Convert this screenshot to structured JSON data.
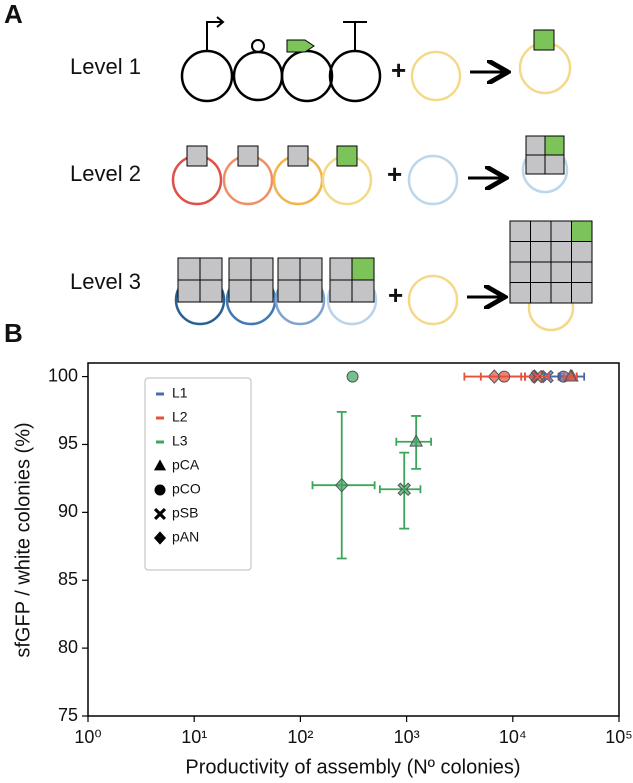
{
  "figure": {
    "panel_a_label": "A",
    "panel_b_label": "B"
  },
  "diagram": {
    "levels": [
      "Level 1",
      "Level 2",
      "Level 3"
    ],
    "plus": "+"
  },
  "chart_data": {
    "type": "scatter",
    "xlabel": "Productivity of assembly (Nº colonies)",
    "ylabel": "sfGFP / white colonies (%)",
    "xscale": "log",
    "xlim": [
      1,
      100000
    ],
    "xticks": [
      {
        "value": 1,
        "label": "10⁰"
      },
      {
        "value": 10,
        "label": "10¹"
      },
      {
        "value": 100,
        "label": "10²"
      },
      {
        "value": 1000,
        "label": "10³"
      },
      {
        "value": 10000,
        "label": "10⁴"
      },
      {
        "value": 100000,
        "label": "10⁵"
      }
    ],
    "ylim": [
      75,
      101
    ],
    "yticks": [
      75,
      80,
      85,
      90,
      95,
      100
    ],
    "legend": "upper left",
    "markers": [
      {
        "name": "pCA",
        "shape": "triangle"
      },
      {
        "name": "pCO",
        "shape": "circle"
      },
      {
        "name": "pSB",
        "shape": "cross"
      },
      {
        "name": "pAN",
        "shape": "diamond"
      }
    ],
    "series": [
      {
        "name": "L1",
        "color": "#4a67b0",
        "points": [
          {
            "marker": "pAN",
            "x": 16000,
            "y": 100,
            "x_err": [
              13000,
              20000
            ]
          },
          {
            "marker": "pSB",
            "x": 21000,
            "y": 100,
            "x_err": [
              16000,
              27000
            ]
          },
          {
            "marker": "pCO",
            "x": 30000,
            "y": 100,
            "x_err": [
              22000,
              40000
            ]
          },
          {
            "marker": "pCA",
            "x": 36000,
            "y": 100,
            "x_err": [
              28000,
              47000
            ]
          }
        ]
      },
      {
        "name": "L2",
        "color": "#e8503a",
        "points": [
          {
            "marker": "pAN",
            "x": 6700,
            "y": 100,
            "x_err": [
              3500,
              12000
            ]
          },
          {
            "marker": "pCO",
            "x": 8300,
            "y": 100,
            "x_err": [
              5000,
              13000
            ]
          },
          {
            "marker": "pSB",
            "x": 17000,
            "y": 100,
            "x_err": [
              13000,
              22000
            ]
          },
          {
            "marker": "pCA",
            "x": 35000,
            "y": 100,
            "x_err": [
              30000,
              40000
            ]
          }
        ]
      },
      {
        "name": "L3",
        "color": "#3ba55c",
        "points": [
          {
            "marker": "pCO",
            "x": 310,
            "y": 100
          },
          {
            "marker": "pAN",
            "x": 245,
            "y": 92,
            "x_err": [
              130,
              500
            ],
            "y_err": [
              86.6,
              97.4
            ]
          },
          {
            "marker": "pSB",
            "x": 950,
            "y": 91.7,
            "x_err": [
              560,
              1350
            ],
            "y_err": [
              88.8,
              94.4
            ]
          },
          {
            "marker": "pCA",
            "x": 1230,
            "y": 95.2,
            "x_err": [
              800,
              1700
            ],
            "y_err": [
              93.2,
              97.1
            ]
          }
        ]
      }
    ]
  }
}
